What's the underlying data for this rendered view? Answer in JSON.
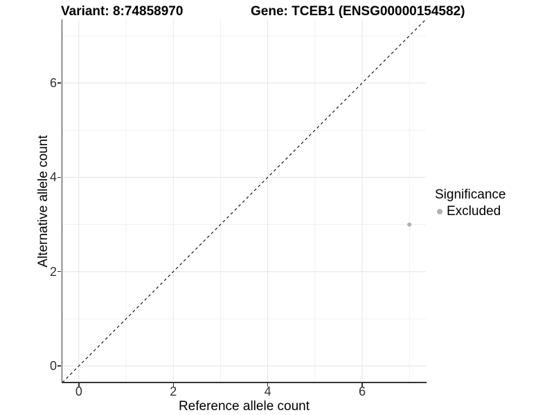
{
  "titles": {
    "variant": "Variant: 8:74858970",
    "gene": "Gene: TCEB1 (ENSG00000154582)"
  },
  "axes": {
    "x_label": "Reference allele count",
    "y_label": "Alternative allele count"
  },
  "legend": {
    "title": "Significance",
    "items": [
      {
        "label": "Excluded",
        "color": "#b0b0b0"
      }
    ]
  },
  "chart_data": {
    "type": "scatter",
    "title": "Variant: 8:74858970 | Gene: TCEB1 (ENSG00000154582)",
    "xlabel": "Reference allele count",
    "ylabel": "Alternative allele count",
    "xlim": [
      -0.35,
      7.35
    ],
    "ylim": [
      -0.35,
      7.35
    ],
    "x_major_ticks": [
      0,
      2,
      4,
      6
    ],
    "x_minor_ticks": [
      1,
      3,
      5,
      7
    ],
    "y_major_ticks": [
      0,
      2,
      4,
      6
    ],
    "y_minor_ticks": [
      1,
      3,
      5,
      7
    ],
    "grid": true,
    "legend_position": "right",
    "series": [
      {
        "name": "Excluded",
        "points": [
          {
            "x": 7,
            "y": 3
          }
        ],
        "color": "#b0b0b0"
      }
    ],
    "reference_line": {
      "type": "identity",
      "slope": 1,
      "intercept": 0,
      "style": "dashed",
      "color": "#000000"
    },
    "colors": {
      "grid_major": "#e5e5e5",
      "grid_minor": "#f0f0f0",
      "axis_line": "#333333",
      "tick_label": "#303030",
      "point": "#b0b0b0",
      "line": "#000000"
    }
  }
}
